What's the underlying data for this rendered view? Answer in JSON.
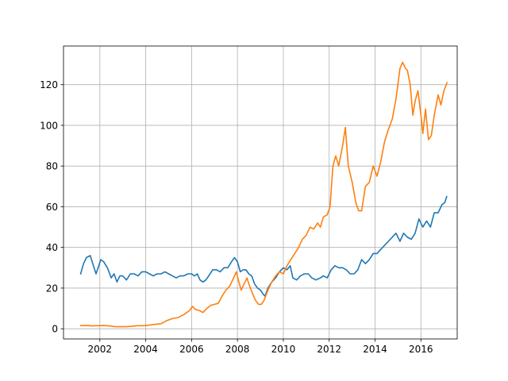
{
  "chart_data": {
    "type": "line",
    "title": "",
    "xlabel": "",
    "ylabel": "",
    "x_range": [
      "2000-06-01",
      "2017-08-01"
    ],
    "ylim": [
      -5,
      139
    ],
    "grid": true,
    "x_ticks": [
      {
        "date": "2002-01-01",
        "label": "2002"
      },
      {
        "date": "2004-01-01",
        "label": "2004"
      },
      {
        "date": "2006-01-01",
        "label": "2006"
      },
      {
        "date": "2008-01-01",
        "label": "2008"
      },
      {
        "date": "2010-01-01",
        "label": "2010"
      },
      {
        "date": "2012-01-01",
        "label": "2012"
      },
      {
        "date": "2014-01-01",
        "label": "2014"
      },
      {
        "date": "2016-01-01",
        "label": "2016"
      }
    ],
    "y_ticks": [
      {
        "value": 0,
        "label": "0"
      },
      {
        "value": 20,
        "label": "20"
      },
      {
        "value": 40,
        "label": "40"
      },
      {
        "value": 60,
        "label": "60"
      },
      {
        "value": 80,
        "label": "80"
      },
      {
        "value": 100,
        "label": "100"
      },
      {
        "value": 120,
        "label": "120"
      }
    ],
    "series": [
      {
        "color": "#1f77b4",
        "points": [
          [
            "2001-03-01",
            27
          ],
          [
            "2001-04-15",
            32
          ],
          [
            "2001-06-01",
            35
          ],
          [
            "2001-08-01",
            36
          ],
          [
            "2001-09-20",
            31
          ],
          [
            "2001-11-01",
            27
          ],
          [
            "2001-12-15",
            31
          ],
          [
            "2002-01-15",
            34
          ],
          [
            "2002-03-01",
            33
          ],
          [
            "2002-05-01",
            30
          ],
          [
            "2002-07-01",
            25
          ],
          [
            "2002-08-15",
            27
          ],
          [
            "2002-10-01",
            23
          ],
          [
            "2002-11-15",
            26
          ],
          [
            "2003-01-01",
            26
          ],
          [
            "2003-03-01",
            24
          ],
          [
            "2003-05-01",
            27
          ],
          [
            "2003-07-01",
            27
          ],
          [
            "2003-09-01",
            26
          ],
          [
            "2003-11-01",
            28
          ],
          [
            "2004-01-01",
            28
          ],
          [
            "2004-03-01",
            27
          ],
          [
            "2004-05-01",
            26
          ],
          [
            "2004-07-01",
            27
          ],
          [
            "2004-09-01",
            27
          ],
          [
            "2004-11-01",
            28
          ],
          [
            "2005-01-01",
            27
          ],
          [
            "2005-03-01",
            26
          ],
          [
            "2005-05-01",
            25
          ],
          [
            "2005-07-01",
            26
          ],
          [
            "2005-09-01",
            26
          ],
          [
            "2005-11-01",
            27
          ],
          [
            "2006-01-01",
            27
          ],
          [
            "2006-02-15",
            26
          ],
          [
            "2006-04-01",
            27
          ],
          [
            "2006-05-15",
            24
          ],
          [
            "2006-07-01",
            23
          ],
          [
            "2006-08-15",
            24
          ],
          [
            "2006-10-01",
            26
          ],
          [
            "2006-12-01",
            29
          ],
          [
            "2007-02-01",
            29
          ],
          [
            "2007-04-01",
            28
          ],
          [
            "2007-06-01",
            30
          ],
          [
            "2007-08-01",
            30
          ],
          [
            "2007-10-01",
            33
          ],
          [
            "2007-11-15",
            35
          ],
          [
            "2008-01-01",
            33
          ],
          [
            "2008-02-15",
            28
          ],
          [
            "2008-04-01",
            29
          ],
          [
            "2008-05-15",
            29
          ],
          [
            "2008-07-01",
            27
          ],
          [
            "2008-08-15",
            26
          ],
          [
            "2008-10-01",
            22
          ],
          [
            "2008-11-15",
            20
          ],
          [
            "2009-01-01",
            19
          ],
          [
            "2009-02-15",
            17
          ],
          [
            "2009-03-15",
            16
          ],
          [
            "2009-05-01",
            20
          ],
          [
            "2009-07-01",
            23
          ],
          [
            "2009-09-01",
            25
          ],
          [
            "2009-11-01",
            28
          ],
          [
            "2010-01-01",
            30
          ],
          [
            "2010-03-01",
            29
          ],
          [
            "2010-04-20",
            31
          ],
          [
            "2010-06-01",
            25
          ],
          [
            "2010-08-01",
            24
          ],
          [
            "2010-10-01",
            26
          ],
          [
            "2010-12-01",
            27
          ],
          [
            "2011-02-01",
            27
          ],
          [
            "2011-04-01",
            25
          ],
          [
            "2011-06-01",
            24
          ],
          [
            "2011-08-15",
            25
          ],
          [
            "2011-10-01",
            26
          ],
          [
            "2011-12-01",
            25
          ],
          [
            "2012-02-01",
            29
          ],
          [
            "2012-04-01",
            31
          ],
          [
            "2012-06-01",
            30
          ],
          [
            "2012-08-01",
            30
          ],
          [
            "2012-10-01",
            29
          ],
          [
            "2012-12-01",
            27
          ],
          [
            "2013-02-01",
            27
          ],
          [
            "2013-04-01",
            29
          ],
          [
            "2013-06-01",
            34
          ],
          [
            "2013-08-01",
            32
          ],
          [
            "2013-10-01",
            34
          ],
          [
            "2013-12-01",
            37
          ],
          [
            "2014-02-01",
            37
          ],
          [
            "2014-04-01",
            39
          ],
          [
            "2014-06-01",
            41
          ],
          [
            "2014-08-01",
            43
          ],
          [
            "2014-10-01",
            45
          ],
          [
            "2014-12-01",
            47
          ],
          [
            "2015-02-01",
            43
          ],
          [
            "2015-04-01",
            47
          ],
          [
            "2015-06-01",
            45
          ],
          [
            "2015-08-01",
            44
          ],
          [
            "2015-10-01",
            47
          ],
          [
            "2015-12-01",
            54
          ],
          [
            "2016-02-01",
            50
          ],
          [
            "2016-04-01",
            53
          ],
          [
            "2016-06-01",
            50
          ],
          [
            "2016-08-01",
            57
          ],
          [
            "2016-10-01",
            57
          ],
          [
            "2016-12-01",
            61
          ],
          [
            "2017-01-15",
            62
          ],
          [
            "2017-02-15",
            65
          ]
        ]
      },
      {
        "color": "#ff7f0e",
        "points": [
          [
            "2001-03-01",
            1.5
          ],
          [
            "2001-06-01",
            1.6
          ],
          [
            "2001-09-01",
            1.4
          ],
          [
            "2001-12-01",
            1.5
          ],
          [
            "2002-03-01",
            1.6
          ],
          [
            "2002-06-01",
            1.4
          ],
          [
            "2002-09-01",
            1.0
          ],
          [
            "2002-12-01",
            1.0
          ],
          [
            "2003-03-01",
            1.0
          ],
          [
            "2003-06-01",
            1.3
          ],
          [
            "2003-09-01",
            1.5
          ],
          [
            "2003-12-01",
            1.5
          ],
          [
            "2004-03-01",
            1.8
          ],
          [
            "2004-06-01",
            2.2
          ],
          [
            "2004-09-01",
            2.5
          ],
          [
            "2004-12-01",
            4.0
          ],
          [
            "2005-03-01",
            5.0
          ],
          [
            "2005-06-01",
            5.5
          ],
          [
            "2005-09-01",
            7.0
          ],
          [
            "2005-12-01",
            9.0
          ],
          [
            "2006-01-15",
            11.0
          ],
          [
            "2006-03-01",
            9.5
          ],
          [
            "2006-05-01",
            9.0
          ],
          [
            "2006-07-01",
            8.0
          ],
          [
            "2006-09-01",
            10.0
          ],
          [
            "2006-11-01",
            11.5
          ],
          [
            "2007-01-01",
            12.0
          ],
          [
            "2007-03-01",
            12.5
          ],
          [
            "2007-05-01",
            16.0
          ],
          [
            "2007-07-01",
            19.0
          ],
          [
            "2007-09-01",
            21.0
          ],
          [
            "2007-11-01",
            25.0
          ],
          [
            "2007-12-15",
            28.0
          ],
          [
            "2008-01-15",
            24.0
          ],
          [
            "2008-03-01",
            19.0
          ],
          [
            "2008-04-15",
            22.0
          ],
          [
            "2008-06-01",
            25.0
          ],
          [
            "2008-07-01",
            22.0
          ],
          [
            "2008-09-01",
            17.0
          ],
          [
            "2008-10-15",
            14.0
          ],
          [
            "2008-12-01",
            12.0
          ],
          [
            "2009-01-15",
            12.0
          ],
          [
            "2009-03-01",
            14.0
          ],
          [
            "2009-05-01",
            19.0
          ],
          [
            "2009-07-01",
            23.0
          ],
          [
            "2009-09-01",
            26.0
          ],
          [
            "2009-11-01",
            28.0
          ],
          [
            "2010-01-01",
            27.0
          ],
          [
            "2010-03-01",
            31.0
          ],
          [
            "2010-05-01",
            34.0
          ],
          [
            "2010-07-01",
            37.0
          ],
          [
            "2010-09-01",
            40.0
          ],
          [
            "2010-11-01",
            44.0
          ],
          [
            "2011-01-01",
            46.0
          ],
          [
            "2011-03-01",
            50.0
          ],
          [
            "2011-05-01",
            49.0
          ],
          [
            "2011-07-01",
            52.0
          ],
          [
            "2011-08-15",
            50.0
          ],
          [
            "2011-10-01",
            55.0
          ],
          [
            "2011-12-01",
            56.0
          ],
          [
            "2012-01-15",
            60.0
          ],
          [
            "2012-03-01",
            80.0
          ],
          [
            "2012-04-15",
            85.0
          ],
          [
            "2012-06-01",
            80.0
          ],
          [
            "2012-08-01",
            90.0
          ],
          [
            "2012-09-15",
            99.0
          ],
          [
            "2012-11-01",
            80.0
          ],
          [
            "2013-01-01",
            72.0
          ],
          [
            "2013-03-01",
            62.0
          ],
          [
            "2013-04-15",
            58.0
          ],
          [
            "2013-06-01",
            58.0
          ],
          [
            "2013-08-01",
            70.0
          ],
          [
            "2013-10-01",
            72.0
          ],
          [
            "2013-12-01",
            80.0
          ],
          [
            "2014-02-01",
            75.0
          ],
          [
            "2014-04-01",
            82.0
          ],
          [
            "2014-06-01",
            92.0
          ],
          [
            "2014-08-01",
            98.0
          ],
          [
            "2014-10-01",
            103.0
          ],
          [
            "2014-12-01",
            113.0
          ],
          [
            "2015-02-01",
            128.0
          ],
          [
            "2015-03-15",
            131.0
          ],
          [
            "2015-05-01",
            128.0
          ],
          [
            "2015-06-01",
            127.0
          ],
          [
            "2015-07-15",
            120.0
          ],
          [
            "2015-08-25",
            105.0
          ],
          [
            "2015-10-01",
            112.0
          ],
          [
            "2015-11-15",
            117.0
          ],
          [
            "2016-01-01",
            105.0
          ],
          [
            "2016-02-01",
            96.0
          ],
          [
            "2016-03-15",
            108.0
          ],
          [
            "2016-05-01",
            93.0
          ],
          [
            "2016-06-15",
            95.0
          ],
          [
            "2016-08-01",
            105.0
          ],
          [
            "2016-10-01",
            115.0
          ],
          [
            "2016-11-15",
            110.0
          ],
          [
            "2017-01-01",
            117.0
          ],
          [
            "2017-02-20",
            121.0
          ]
        ]
      }
    ]
  }
}
